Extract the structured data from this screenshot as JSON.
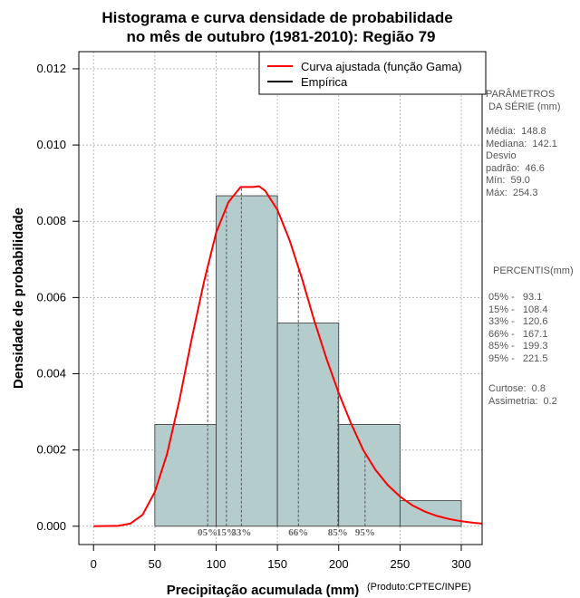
{
  "chart_data": {
    "type": "bar",
    "title_line1": "Histograma e curva densidade de probabilidade",
    "title_line2": "no mês de outubro (1981-2010): Região 79",
    "xlabel": "Precipitação acumulada (mm)",
    "ylabel": "Densidade de probabilidade",
    "source": "(Produto:CPTEC/INPE)",
    "xlim": [
      -12,
      317
    ],
    "ylim": [
      -0.00048,
      0.01245
    ],
    "x_ticks": [
      0,
      50,
      100,
      150,
      200,
      250,
      300
    ],
    "y_ticks": [
      0.0,
      0.002,
      0.004,
      0.006,
      0.008,
      0.01,
      0.012
    ],
    "y_tick_labels": [
      "0.000",
      "0.002",
      "0.004",
      "0.006",
      "0.008",
      "0.010",
      "0.012"
    ],
    "grid": true,
    "bins": [
      {
        "from": 50,
        "to": 100,
        "density": 0.00267
      },
      {
        "from": 100,
        "to": 150,
        "density": 0.00867
      },
      {
        "from": 150,
        "to": 200,
        "density": 0.00533
      },
      {
        "from": 200,
        "to": 250,
        "density": 0.00267
      },
      {
        "from": 250,
        "to": 300,
        "density": 0.00067
      }
    ],
    "curve": {
      "name": "Curva ajustada (função Gama)",
      "color": "#ff0000",
      "points": [
        [
          0,
          0
        ],
        [
          20,
          1e-05
        ],
        [
          30,
          7e-05
        ],
        [
          40,
          0.0003
        ],
        [
          50,
          0.0009
        ],
        [
          60,
          0.0019
        ],
        [
          70,
          0.0033
        ],
        [
          80,
          0.0049
        ],
        [
          90,
          0.0064
        ],
        [
          100,
          0.0077
        ],
        [
          110,
          0.0085
        ],
        [
          120,
          0.0089
        ],
        [
          130,
          0.0089
        ],
        [
          135,
          0.00892
        ],
        [
          140,
          0.0088
        ],
        [
          150,
          0.0083
        ],
        [
          160,
          0.0075
        ],
        [
          170,
          0.0065
        ],
        [
          180,
          0.0054
        ],
        [
          190,
          0.0044
        ],
        [
          200,
          0.0035
        ],
        [
          210,
          0.0027
        ],
        [
          220,
          0.002
        ],
        [
          230,
          0.00148
        ],
        [
          240,
          0.00108
        ],
        [
          250,
          0.00078
        ],
        [
          260,
          0.00055
        ],
        [
          270,
          0.00039
        ],
        [
          280,
          0.00027
        ],
        [
          290,
          0.00019
        ],
        [
          300,
          0.00013
        ],
        [
          310,
          9e-05
        ],
        [
          317,
          7e-05
        ]
      ]
    },
    "percentile_lines": [
      {
        "label": "05%",
        "value": 93.1
      },
      {
        "label": "15%",
        "value": 108.4
      },
      {
        "label": "33%",
        "value": 120.6
      },
      {
        "label": "66%",
        "value": 167.1
      },
      {
        "label": "85%",
        "value": 199.3
      },
      {
        "label": "95%",
        "value": 221.5
      }
    ],
    "legend": [
      {
        "label": "Curva ajustada (função Gama)",
        "color": "#ff0000"
      },
      {
        "label": "Empírica",
        "color": "#000000"
      }
    ],
    "legend_position": "top-right",
    "colors": {
      "bars": "#b5cccc",
      "curve": "#ff0000",
      "grid": "#b8b8b8",
      "percentile": "#555566"
    }
  },
  "side_panel": {
    "params_title": "PARÂMETROS\n DA SÉRIE (mm)",
    "params": "Média:  148.8\nMediana:  142.1\nDesvio\npadrão:  46.6\nMín:  59.0\nMáx:  254.3",
    "percentis_title": "PERCENTIS(mm)",
    "percentis": "05% -   93.1\n15% -   108.4\n33% -   120.6\n66% -   167.1\n85% -   199.3\n95% -   221.5",
    "stats": "Curtose:  0.8\nAssimetria:  0.2"
  }
}
